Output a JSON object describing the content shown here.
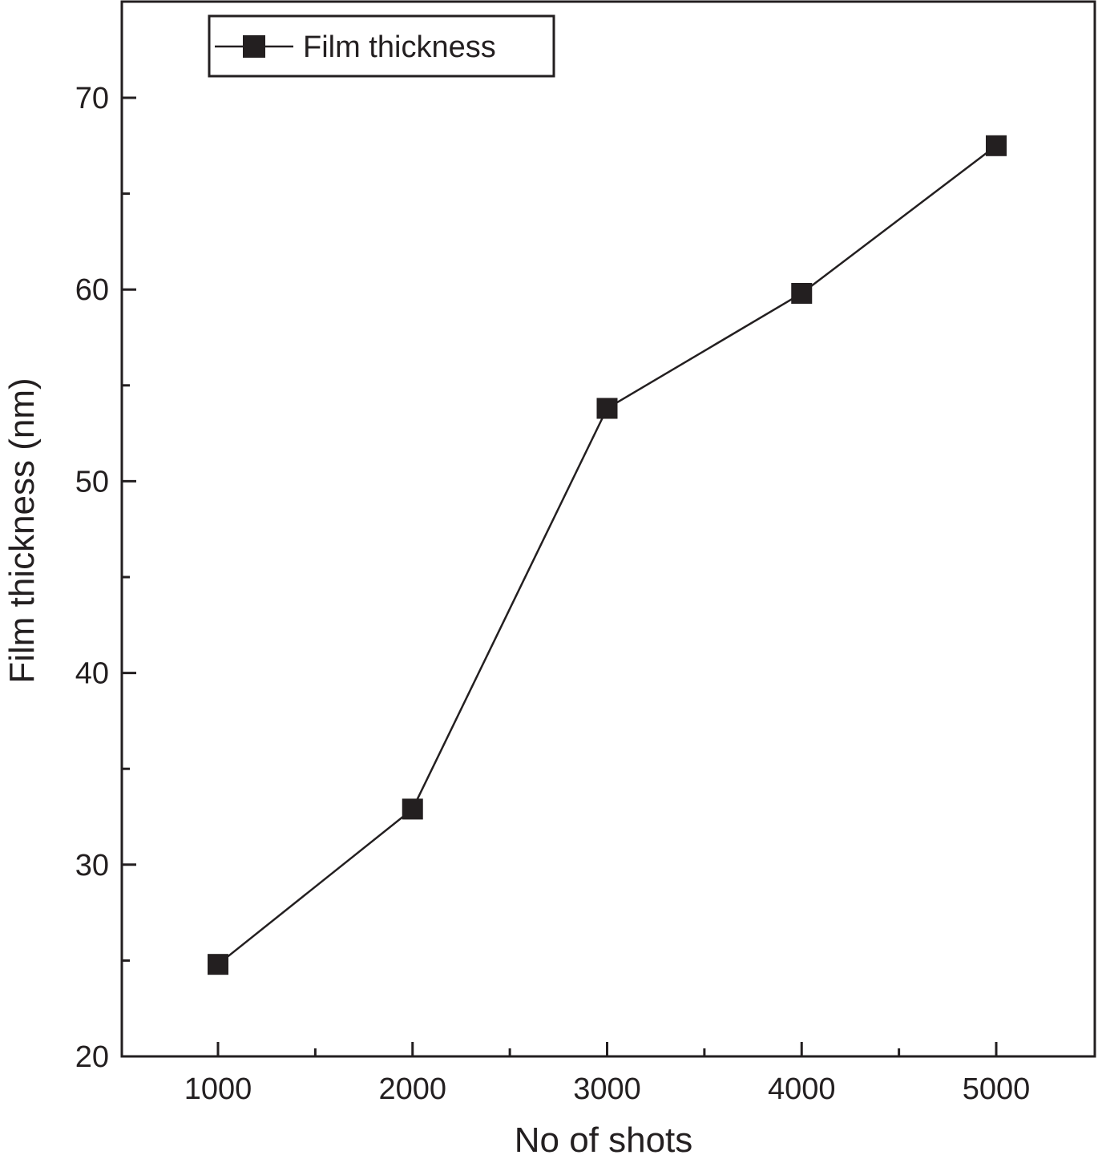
{
  "chart_data": {
    "type": "line",
    "xlabel": "No of shots",
    "ylabel": "Film thickness (nm)",
    "xlim": [
      500,
      5500
    ],
    "ylim": [
      20,
      75
    ],
    "x_ticks": [
      1000,
      2000,
      3000,
      4000,
      5000
    ],
    "x_tick_labels": [
      "1000",
      "2000",
      "3000",
      "4000",
      "5000"
    ],
    "x_minor_ticks": [
      1500,
      2500,
      3500,
      4500
    ],
    "y_ticks": [
      20,
      30,
      40,
      50,
      60,
      70
    ],
    "y_tick_labels": [
      "20",
      "30",
      "40",
      "50",
      "60",
      "70"
    ],
    "y_minor_ticks": [
      25,
      35,
      45,
      55,
      65
    ],
    "grid": false,
    "legend_position": "top-left",
    "series": [
      {
        "name": "Film thickness",
        "marker": "square",
        "color": "#231f20",
        "x": [
          1000,
          2000,
          3000,
          4000,
          5000
        ],
        "y": [
          24.8,
          32.9,
          53.8,
          59.8,
          67.5
        ]
      }
    ]
  }
}
